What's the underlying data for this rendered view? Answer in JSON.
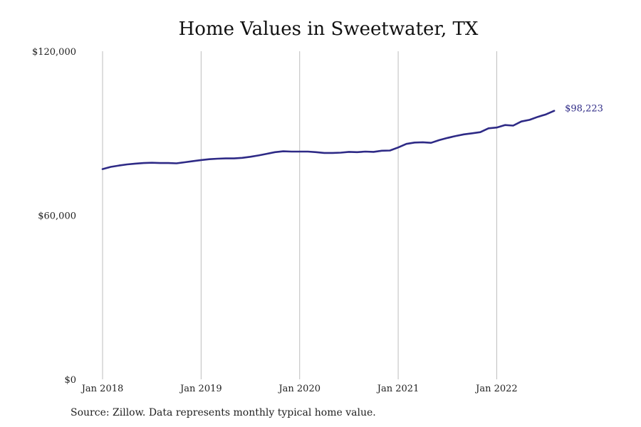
{
  "chart_data": {
    "type": "line",
    "title": "Home Values in Sweetwater, TX",
    "xlabel": "",
    "ylabel": "",
    "ylim": [
      0,
      120000
    ],
    "y_ticks": [
      {
        "value": 0,
        "label": "$0"
      },
      {
        "value": 60000,
        "label": "$60,000"
      },
      {
        "value": 120000,
        "label": "$120,000"
      }
    ],
    "x_ticks": [
      {
        "value": "2018-01",
        "label": "Jan 2018"
      },
      {
        "value": "2019-01",
        "label": "Jan 2019"
      },
      {
        "value": "2020-01",
        "label": "Jan 2020"
      },
      {
        "value": "2021-01",
        "label": "Jan 2021"
      },
      {
        "value": "2022-01",
        "label": "Jan 2022"
      }
    ],
    "grid": "vertical gridlines at year ticks",
    "line_color": "#2e2a86",
    "series": [
      {
        "values": [
          [
            "2018-01",
            76900
          ],
          [
            "2018-02",
            77700
          ],
          [
            "2018-03",
            78200
          ],
          [
            "2018-04",
            78600
          ],
          [
            "2018-05",
            78900
          ],
          [
            "2018-06",
            79100
          ],
          [
            "2018-07",
            79200
          ],
          [
            "2018-08",
            79100
          ],
          [
            "2018-09",
            79100
          ],
          [
            "2018-10",
            79000
          ],
          [
            "2018-11",
            79400
          ],
          [
            "2018-12",
            79800
          ],
          [
            "2019-01",
            80200
          ],
          [
            "2019-02",
            80500
          ],
          [
            "2019-03",
            80700
          ],
          [
            "2019-04",
            80800
          ],
          [
            "2019-05",
            80800
          ],
          [
            "2019-06",
            81000
          ],
          [
            "2019-07",
            81400
          ],
          [
            "2019-08",
            81900
          ],
          [
            "2019-09",
            82500
          ],
          [
            "2019-10",
            83100
          ],
          [
            "2019-11",
            83400
          ],
          [
            "2019-12",
            83300
          ],
          [
            "2020-01",
            83300
          ],
          [
            "2020-02",
            83300
          ],
          [
            "2020-03",
            83100
          ],
          [
            "2020-04",
            82800
          ],
          [
            "2020-05",
            82800
          ],
          [
            "2020-06",
            82900
          ],
          [
            "2020-07",
            83200
          ],
          [
            "2020-08",
            83100
          ],
          [
            "2020-09",
            83300
          ],
          [
            "2020-10",
            83200
          ],
          [
            "2020-11",
            83600
          ],
          [
            "2020-12",
            83700
          ],
          [
            "2021-01",
            84800
          ],
          [
            "2021-02",
            86100
          ],
          [
            "2021-03",
            86600
          ],
          [
            "2021-04",
            86700
          ],
          [
            "2021-05",
            86500
          ],
          [
            "2021-06",
            87500
          ],
          [
            "2021-07",
            88300
          ],
          [
            "2021-08",
            89000
          ],
          [
            "2021-09",
            89600
          ],
          [
            "2021-10",
            90000
          ],
          [
            "2021-11",
            90400
          ],
          [
            "2021-12",
            91800
          ],
          [
            "2022-01",
            92100
          ],
          [
            "2022-02",
            93000
          ],
          [
            "2022-03",
            92800
          ],
          [
            "2022-04",
            94300
          ],
          [
            "2022-05",
            94900
          ],
          [
            "2022-06",
            96000
          ],
          [
            "2022-07",
            96900
          ],
          [
            "2022-08",
            98223
          ]
        ]
      }
    ],
    "end_label": "$98,223"
  },
  "footer": {
    "source": "Source: Zillow. Data represents monthly typical home value."
  }
}
